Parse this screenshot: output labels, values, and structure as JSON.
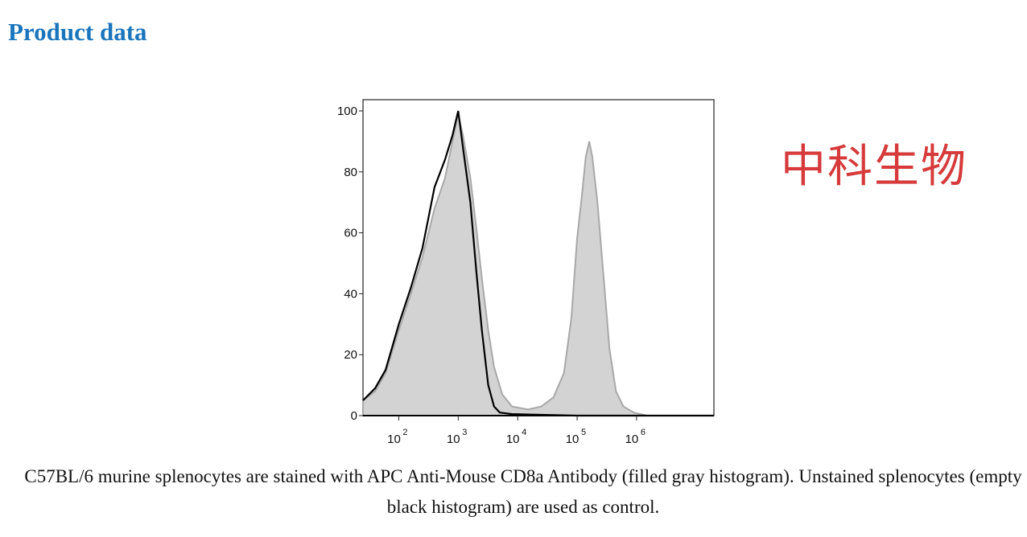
{
  "page": {
    "title": "Product data",
    "watermark": "中科生物",
    "caption": "C57BL/6 murine splenocytes are stained with APC Anti-Mouse CD8a Antibody (filled gray histogram). Unstained splenocytes (empty black histogram) are used as control."
  },
  "colors": {
    "title": "#1b75bc",
    "watermark": "#d63a3a",
    "stained_fill": "#d3d3d3",
    "stained_edge": "#a8a8a8",
    "control_line": "#000000"
  },
  "chart_data": {
    "type": "area",
    "title": "",
    "xlabel": "",
    "ylabel": "",
    "x_scale": "log",
    "xlim": [
      25,
      20000000
    ],
    "ylim": [
      0,
      100
    ],
    "y_ticks": [
      0,
      20,
      40,
      60,
      80,
      100
    ],
    "x_ticks": [
      {
        "value": 100,
        "base": "10",
        "exp": "2"
      },
      {
        "value": 1000,
        "base": "10",
        "exp": "3"
      },
      {
        "value": 10000,
        "base": "10",
        "exp": "4"
      },
      {
        "value": 100000,
        "base": "10",
        "exp": "5"
      },
      {
        "value": 1000000,
        "base": "10",
        "exp": "6"
      }
    ],
    "grid": false,
    "legend": "none",
    "series": [
      {
        "style": "filled gray",
        "points": [
          [
            25,
            5
          ],
          [
            40,
            8
          ],
          [
            60,
            14
          ],
          [
            100,
            28
          ],
          [
            160,
            40
          ],
          [
            250,
            52
          ],
          [
            400,
            68
          ],
          [
            600,
            78
          ],
          [
            800,
            90
          ],
          [
            1000,
            99
          ],
          [
            1200,
            92
          ],
          [
            1600,
            78
          ],
          [
            2000,
            62
          ],
          [
            2500,
            45
          ],
          [
            3200,
            28
          ],
          [
            4000,
            16
          ],
          [
            5500,
            7
          ],
          [
            8000,
            3
          ],
          [
            15000,
            2
          ],
          [
            25000,
            3
          ],
          [
            40000,
            6
          ],
          [
            60000,
            14
          ],
          [
            80000,
            32
          ],
          [
            100000,
            58
          ],
          [
            120000,
            72
          ],
          [
            140000,
            85
          ],
          [
            160000,
            90
          ],
          [
            180000,
            85
          ],
          [
            220000,
            70
          ],
          [
            280000,
            45
          ],
          [
            350000,
            22
          ],
          [
            450000,
            8
          ],
          [
            600000,
            3
          ],
          [
            900000,
            1
          ],
          [
            1500000,
            0
          ],
          [
            20000000,
            0
          ]
        ]
      },
      {
        "style": "empty black",
        "points": [
          [
            25,
            5
          ],
          [
            40,
            9
          ],
          [
            60,
            15
          ],
          [
            100,
            30
          ],
          [
            160,
            42
          ],
          [
            250,
            55
          ],
          [
            400,
            75
          ],
          [
            600,
            84
          ],
          [
            800,
            92
          ],
          [
            1000,
            100
          ],
          [
            1200,
            88
          ],
          [
            1600,
            70
          ],
          [
            2000,
            48
          ],
          [
            2500,
            28
          ],
          [
            3200,
            10
          ],
          [
            4000,
            3
          ],
          [
            5000,
            1
          ],
          [
            8000,
            0.5
          ],
          [
            20000,
            0.3
          ],
          [
            100000,
            0
          ],
          [
            20000000,
            0
          ]
        ]
      }
    ]
  }
}
